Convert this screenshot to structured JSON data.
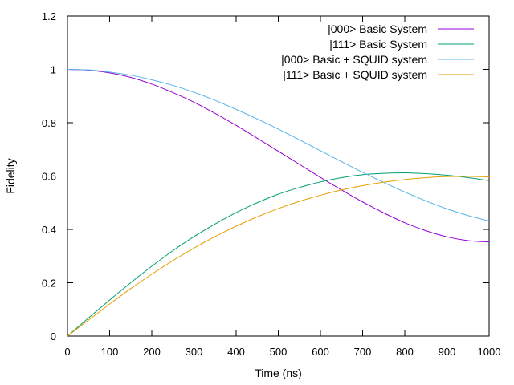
{
  "chart_data": {
    "type": "line",
    "xlabel": "Time (ns)",
    "ylabel": "Fidelity",
    "xlim": [
      0,
      1000
    ],
    "ylim": [
      0,
      1.2
    ],
    "x_ticks": [
      0,
      100,
      200,
      300,
      400,
      500,
      600,
      700,
      800,
      900,
      1000
    ],
    "y_ticks": [
      0,
      0.2,
      0.4,
      0.6,
      0.8,
      1,
      1.2
    ],
    "grid": false,
    "legend_position": "top-right",
    "x": [
      0,
      50,
      100,
      150,
      200,
      250,
      300,
      350,
      400,
      450,
      500,
      550,
      600,
      650,
      700,
      750,
      800,
      850,
      900,
      950,
      1000
    ],
    "series": [
      {
        "name": "|000> Basic System",
        "color": "#9400d3",
        "values": [
          1.0,
          0.997,
          0.987,
          0.97,
          0.945,
          0.913,
          0.877,
          0.835,
          0.79,
          0.742,
          0.693,
          0.644,
          0.595,
          0.548,
          0.503,
          0.462,
          0.425,
          0.395,
          0.372,
          0.358,
          0.353
        ]
      },
      {
        "name": "|111> Basic System",
        "color": "#009e73",
        "values": [
          0.0,
          0.068,
          0.135,
          0.2,
          0.262,
          0.32,
          0.373,
          0.42,
          0.463,
          0.5,
          0.532,
          0.557,
          0.578,
          0.594,
          0.605,
          0.61,
          0.612,
          0.609,
          0.603,
          0.594,
          0.583
        ]
      },
      {
        "name": "|000> Basic + SQUID system",
        "color": "#56b4e9",
        "values": [
          1.0,
          0.998,
          0.99,
          0.978,
          0.961,
          0.94,
          0.914,
          0.884,
          0.85,
          0.814,
          0.776,
          0.736,
          0.695,
          0.654,
          0.614,
          0.576,
          0.54,
          0.507,
          0.477,
          0.452,
          0.432
        ]
      },
      {
        "name": "|111> Basic + SQUID system",
        "color": "#e69f00",
        "values": [
          0.0,
          0.06,
          0.12,
          0.178,
          0.232,
          0.283,
          0.33,
          0.373,
          0.412,
          0.447,
          0.478,
          0.505,
          0.528,
          0.548,
          0.564,
          0.577,
          0.587,
          0.594,
          0.598,
          0.599,
          0.597
        ]
      }
    ]
  }
}
